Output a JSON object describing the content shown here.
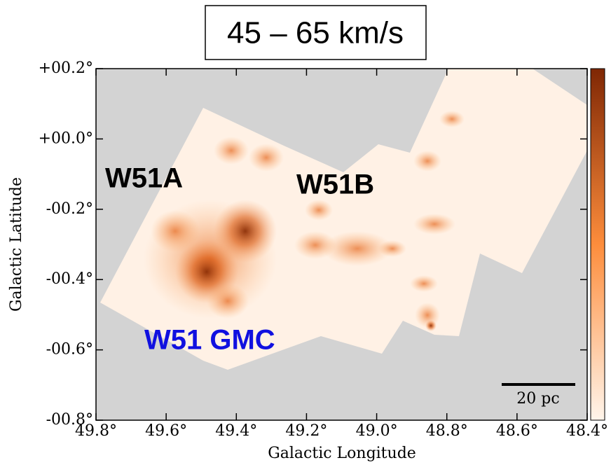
{
  "chart_data": {
    "type": "image",
    "title": "45 – 65 km/s",
    "x_label": "Galactic Longitude",
    "y_label": "Galactic Latitude",
    "xlim": [
      49.8,
      48.4
    ],
    "ylim": [
      -0.8,
      0.2
    ],
    "xticks": [
      {
        "value": 49.8,
        "label": "49.8°"
      },
      {
        "value": 49.6,
        "label": "49.6°"
      },
      {
        "value": 49.4,
        "label": "49.4°"
      },
      {
        "value": 49.2,
        "label": "49.2°"
      },
      {
        "value": 49.0,
        "label": "49.0°"
      },
      {
        "value": 48.8,
        "label": "48.8°"
      },
      {
        "value": 48.6,
        "label": "48.6°"
      },
      {
        "value": 48.4,
        "label": "48.4°"
      }
    ],
    "yticks": [
      {
        "value": 0.2,
        "label": "+00.2°"
      },
      {
        "value": 0.0,
        "label": "+00.0°"
      },
      {
        "value": -0.2,
        "label": "-00.2°"
      },
      {
        "value": -0.4,
        "label": "-00.4°"
      },
      {
        "value": -0.6,
        "label": "-00.6°"
      },
      {
        "value": -0.8,
        "label": "-00.8°"
      }
    ],
    "annotations": [
      "W51A",
      "W51B",
      "W51 GMC"
    ],
    "scale_bar_label": "20 pc"
  }
}
